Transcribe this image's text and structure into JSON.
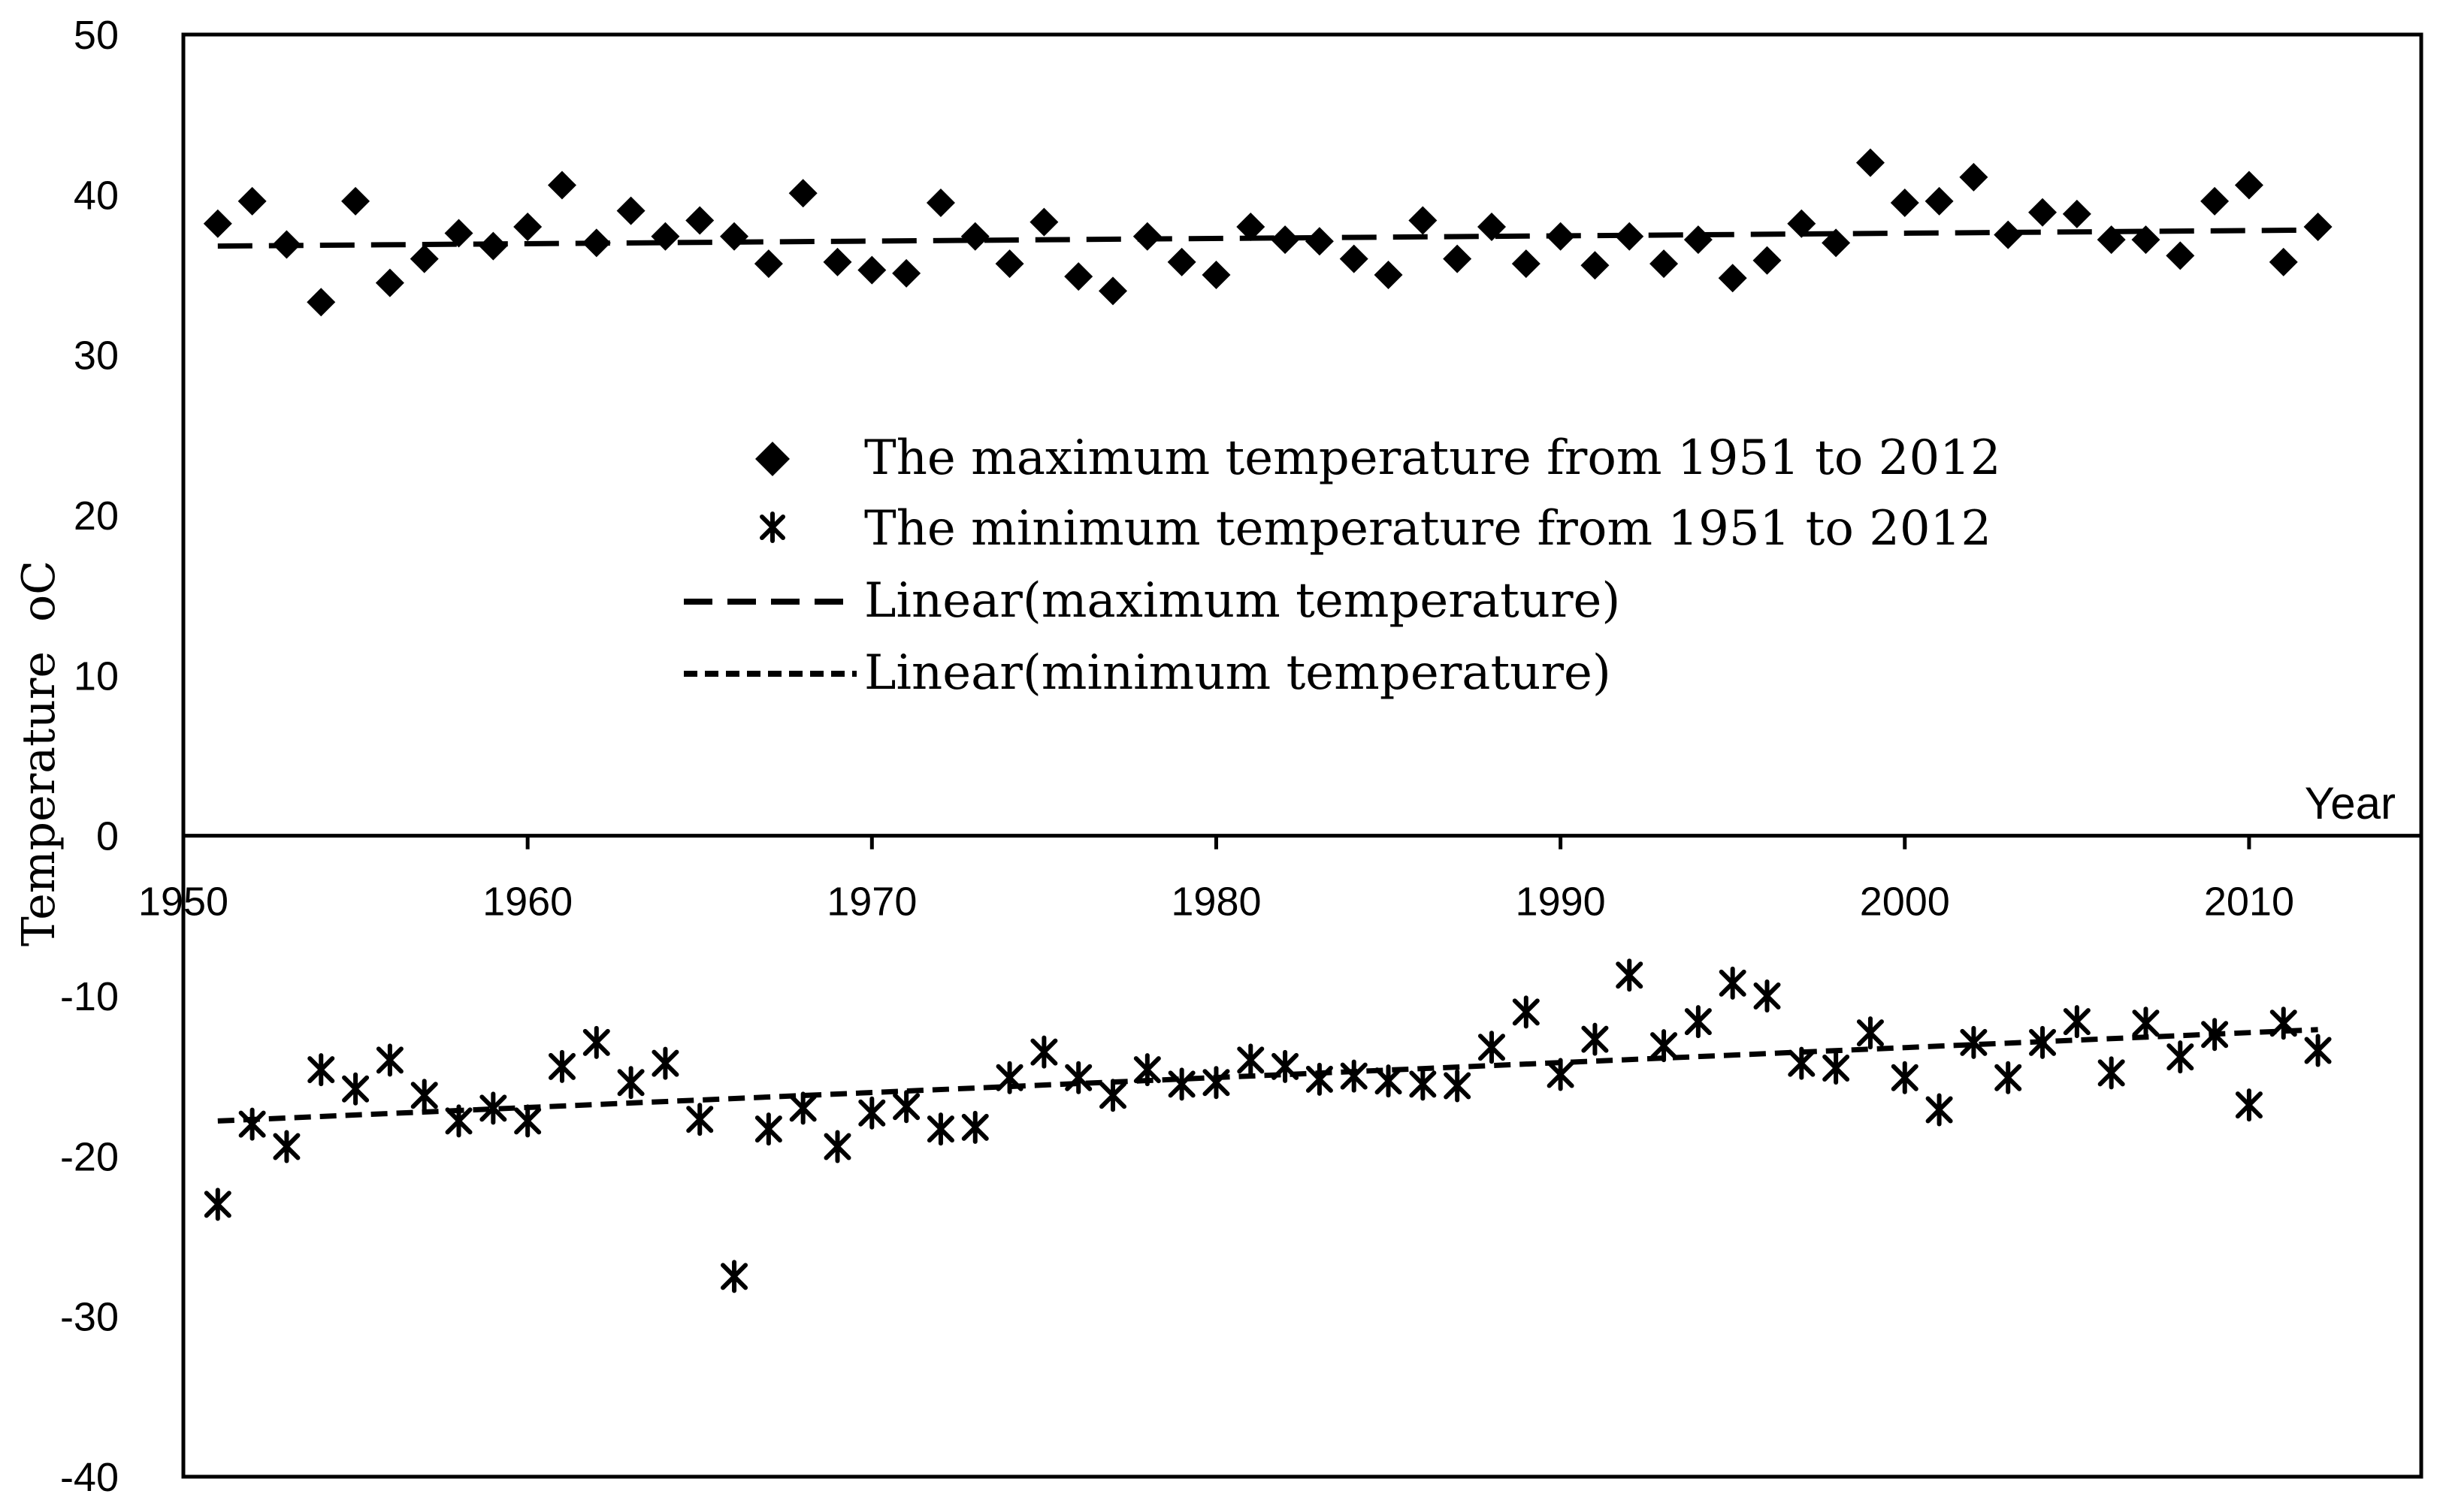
{
  "chart_data": {
    "type": "scatter",
    "xlabel": "Year",
    "ylabel": "Temperature",
    "ylabel_unit": "oC",
    "xlim": [
      1950,
      2015
    ],
    "ylim": [
      -40,
      50
    ],
    "x_ticks": [
      1950,
      1960,
      1970,
      1980,
      1990,
      2000,
      2010
    ],
    "y_ticks": [
      -40,
      -30,
      -20,
      -10,
      0,
      10,
      20,
      30,
      40,
      50
    ],
    "legend_position": "center",
    "years": [
      1951,
      1952,
      1953,
      1954,
      1955,
      1956,
      1957,
      1958,
      1959,
      1960,
      1961,
      1962,
      1963,
      1964,
      1965,
      1966,
      1967,
      1968,
      1969,
      1970,
      1971,
      1972,
      1973,
      1974,
      1975,
      1976,
      1977,
      1978,
      1979,
      1980,
      1981,
      1982,
      1983,
      1984,
      1985,
      1986,
      1987,
      1988,
      1989,
      1990,
      1991,
      1992,
      1993,
      1994,
      1995,
      1996,
      1997,
      1998,
      1999,
      2000,
      2001,
      2002,
      2003,
      2004,
      2005,
      2006,
      2007,
      2008,
      2009,
      2010,
      2011,
      2012
    ],
    "series": [
      {
        "name": "The maximum temperature from 1951 to 2012",
        "marker": "diamond",
        "values": [
          38.2,
          39.6,
          36.9,
          33.3,
          39.6,
          34.5,
          36.0,
          37.6,
          36.8,
          38.0,
          40.6,
          37.0,
          39.0,
          37.4,
          38.4,
          37.4,
          35.7,
          40.1,
          35.8,
          35.3,
          35.1,
          39.5,
          37.4,
          35.7,
          38.3,
          34.9,
          34.0,
          37.4,
          35.8,
          35.0,
          38.0,
          37.2,
          37.1,
          36.0,
          35.0,
          38.4,
          36.0,
          38.0,
          35.7,
          37.4,
          35.6,
          37.4,
          35.7,
          37.2,
          34.8,
          35.9,
          38.2,
          37.0,
          42.0,
          39.5,
          39.6,
          41.1,
          37.5,
          38.9,
          38.8,
          37.2,
          37.2,
          36.2,
          39.6,
          40.6,
          35.8,
          38.0
        ]
      },
      {
        "name": "The minimum temperature from 1951 to 2012",
        "marker": "asterisk",
        "values": [
          -23.0,
          -18.0,
          -19.4,
          -14.6,
          -15.8,
          -14.0,
          -16.2,
          -17.8,
          -17.0,
          -17.8,
          -14.4,
          -12.9,
          -15.4,
          -14.2,
          -17.7,
          -27.5,
          -18.3,
          -17.0,
          -19.4,
          -17.3,
          -16.9,
          -18.3,
          -18.2,
          -15.1,
          -13.5,
          -15.1,
          -16.2,
          -14.6,
          -15.5,
          -15.4,
          -14.0,
          -14.4,
          -15.2,
          -15.0,
          -15.3,
          -15.5,
          -15.6,
          -13.2,
          -11.0,
          -14.9,
          -12.7,
          -8.7,
          -13.1,
          -11.6,
          -9.2,
          -10.0,
          -14.2,
          -14.5,
          -12.3,
          -15.1,
          -17.1,
          -12.9,
          -15.1,
          -12.9,
          -11.6,
          -14.8,
          -11.7,
          -13.8,
          -12.4,
          -16.8,
          -11.7,
          -13.4
        ]
      },
      {
        "name": "Linear(maximum temperature)",
        "type": "trendline",
        "style": "long-dash",
        "start": [
          1951,
          36.8
        ],
        "end": [
          2012,
          37.8
        ]
      },
      {
        "name": "Linear(minimum temperature)",
        "type": "trendline",
        "style": "short-dash",
        "start": [
          1951,
          -17.8
        ],
        "end": [
          2012,
          -12.1
        ]
      }
    ]
  }
}
